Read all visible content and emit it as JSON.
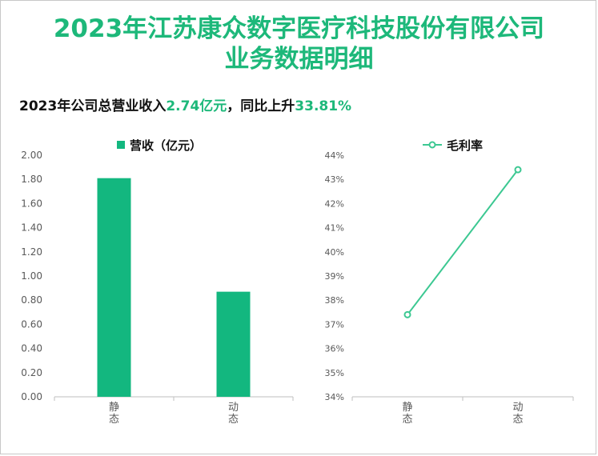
{
  "title": {
    "line1": "2023年江苏康众数字医疗科技股份有限公司",
    "line2": "业务数据明细"
  },
  "summary": {
    "prefix": "2023年公司总营业收入",
    "revenue": "2.74亿元",
    "middle": "，同比上升",
    "growth": "33.81%"
  },
  "colors": {
    "accent": "#1db87a",
    "bar": "#13b77f",
    "line": "#3cc892",
    "axis": "#bfbfbf",
    "text": "#595959"
  },
  "chart_data": [
    {
      "type": "bar",
      "legend": "营收（亿元）",
      "categories": [
        "静态",
        "动态"
      ],
      "values": [
        1.81,
        0.87
      ],
      "ylim": [
        0,
        2.0
      ],
      "yticks": [
        "0.00",
        "0.20",
        "0.40",
        "0.60",
        "0.80",
        "1.00",
        "1.20",
        "1.40",
        "1.60",
        "1.80",
        "2.00"
      ],
      "grid": false,
      "legend_position": "top"
    },
    {
      "type": "line",
      "legend": "毛利率",
      "categories": [
        "静态",
        "动态"
      ],
      "values": [
        37.4,
        43.4
      ],
      "ylim": [
        34,
        44
      ],
      "yticks": [
        "34%",
        "35%",
        "36%",
        "37%",
        "38%",
        "39%",
        "40%",
        "41%",
        "42%",
        "43%",
        "44%"
      ],
      "grid": false,
      "legend_position": "top"
    }
  ]
}
